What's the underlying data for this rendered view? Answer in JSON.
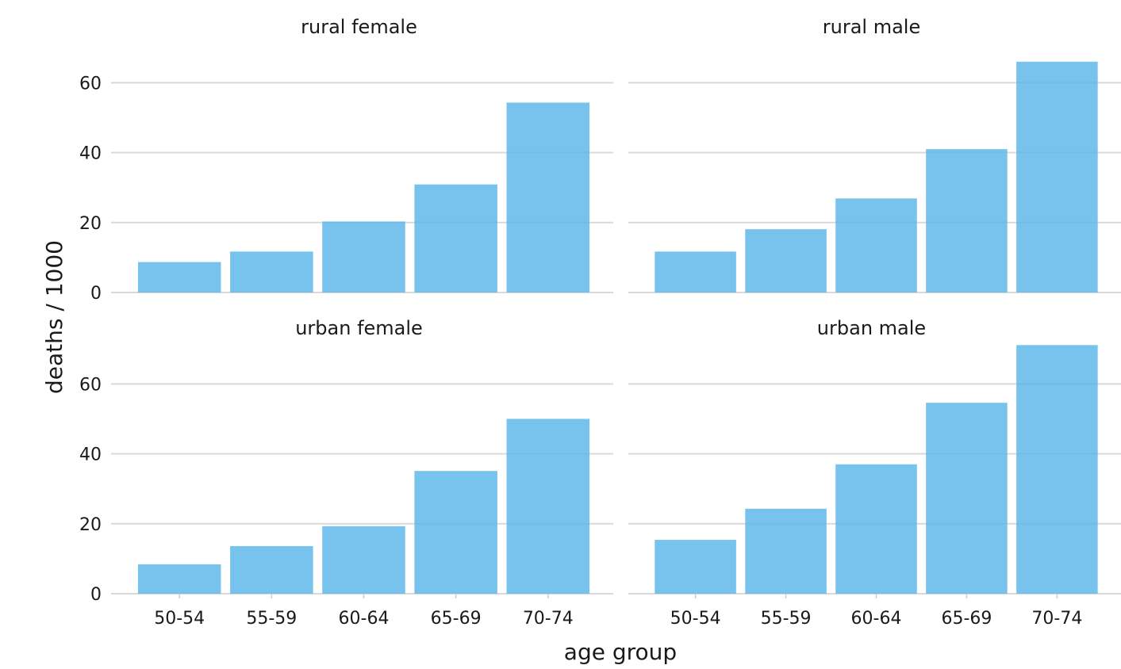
{
  "chart_data": {
    "type": "bar",
    "layout": "facet-grid-2x2",
    "xlabel": "age group",
    "ylabel": "deaths / 1000",
    "categories": [
      "50-54",
      "55-59",
      "60-64",
      "65-69",
      "70-74"
    ],
    "ylim": [
      0,
      70.5
    ],
    "yticks": [
      0,
      20,
      40,
      60
    ],
    "grid": "horizontal",
    "bar_color": "#56B4E9",
    "panels": [
      {
        "title": "rural female",
        "values": [
          8.7,
          11.7,
          20.3,
          30.9,
          54.3
        ]
      },
      {
        "title": "rural male",
        "values": [
          11.7,
          18.1,
          26.9,
          41.0,
          66.0
        ]
      },
      {
        "title": "urban female",
        "values": [
          8.4,
          13.6,
          19.3,
          35.1,
          50.0
        ]
      },
      {
        "title": "urban male",
        "values": [
          15.4,
          24.3,
          37.0,
          54.6,
          71.1
        ]
      }
    ]
  }
}
